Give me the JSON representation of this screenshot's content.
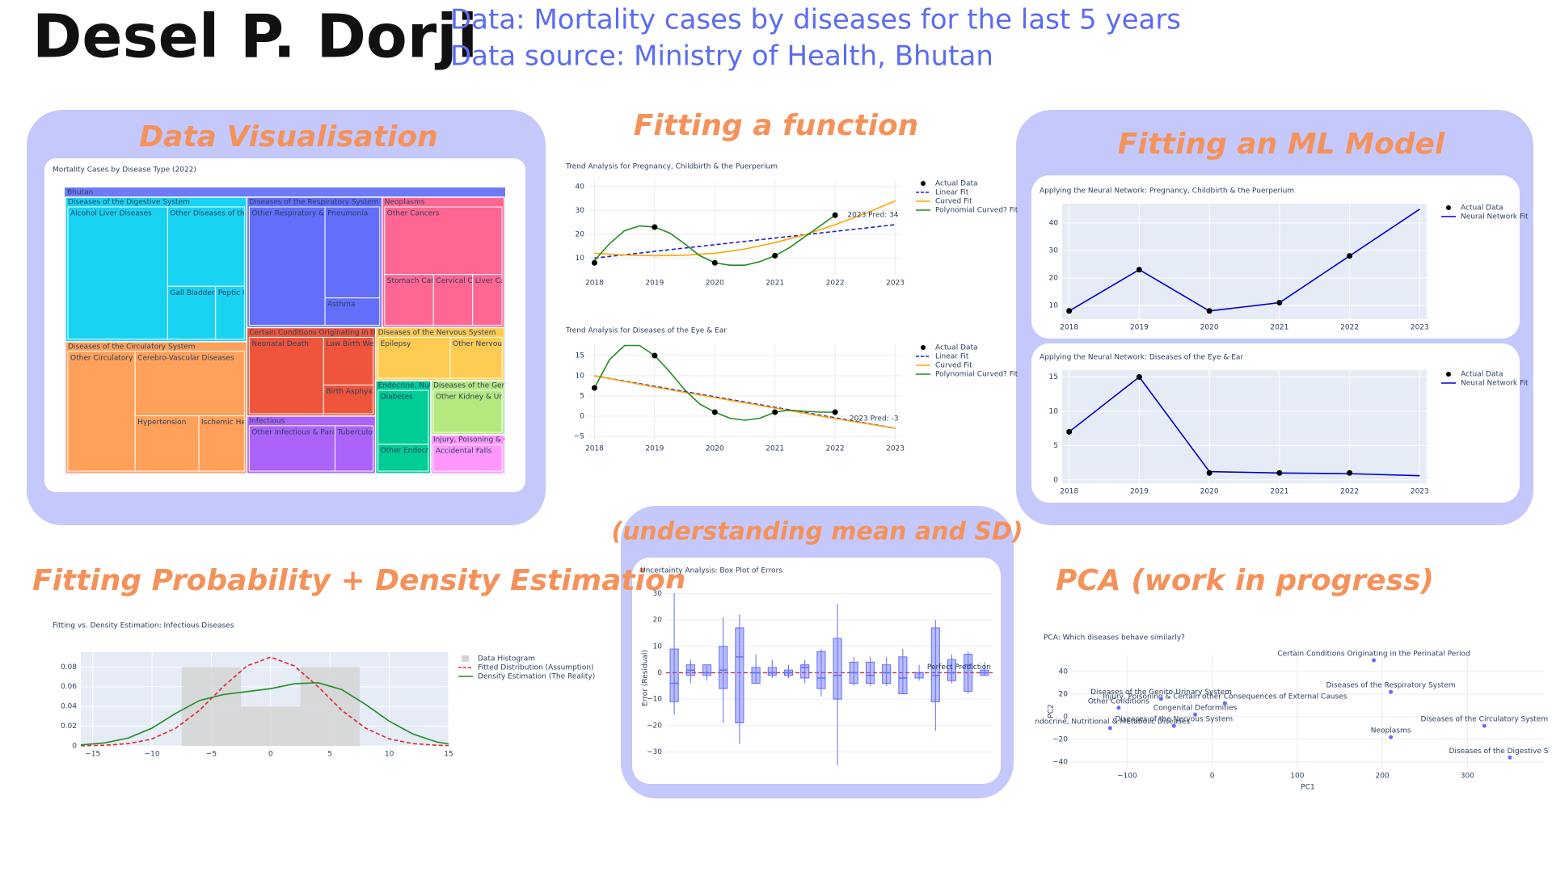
{
  "header": {
    "name": "Desel P. Dorji",
    "lines": [
      "Data: Mortality cases by diseases for the last 5 years",
      "Data source: Ministry of Health, Bhutan"
    ]
  },
  "sections": [
    "Data Visualisation",
    "Fitting a function",
    "Fitting an ML Model",
    "Fitting Probability + Density Estimation",
    "(understanding mean and SD)",
    "PCA (work in progress)"
  ],
  "chart_data": [
    {
      "type": "treemap",
      "title": "Mortality Cases by Disease Type (2022)",
      "root": "Bhutan",
      "groups": [
        {
          "name": "Diseases of the Digestive System",
          "color": "#19d3f3",
          "children": [
            {
              "name": "Alcohol Liver Diseases",
              "value": 130
            },
            {
              "name": "Other Diseases of the Digestive System",
              "value": 60
            },
            {
              "name": "Gall Bladder Diseases",
              "value": 25
            },
            {
              "name": "Peptic Ulcer",
              "value": 15
            }
          ]
        },
        {
          "name": "Diseases of the Circulatory System",
          "color": "#ffa15a",
          "children": [
            {
              "name": "Other Circulatory Diseases",
              "value": 80
            },
            {
              "name": "Cerebro-Vascular Diseases",
              "value": 70
            },
            {
              "name": "Hypertension",
              "value": 35
            },
            {
              "name": "Ischemic Heart Disease",
              "value": 25
            }
          ]
        },
        {
          "name": "Diseases of the Respiratory System",
          "color": "#636efa",
          "children": [
            {
              "name": "Other Respiratory & Nose Diseases",
              "value": 90
            },
            {
              "name": "Pneumonia",
              "value": 50
            },
            {
              "name": "Asthma",
              "value": 15
            }
          ]
        },
        {
          "name": "Neoplasms",
          "color": "#ff6692",
          "children": [
            {
              "name": "Other Cancers",
              "value": 80
            },
            {
              "name": "Stomach Cancer",
              "value": 25
            },
            {
              "name": "Cervical Cancer",
              "value": 20
            },
            {
              "name": "Liver Cancer",
              "value": 15
            }
          ]
        },
        {
          "name": "Certain Conditions Originating in the Perinatal Period",
          "color": "#ef553b",
          "children": [
            {
              "name": "Neonatal Death",
              "value": 60
            },
            {
              "name": "Low Birth Weight",
              "value": 25
            },
            {
              "name": "Birth Asphyxia",
              "value": 15
            }
          ]
        },
        {
          "name": "Infectious",
          "color": "#ab63fa",
          "children": [
            {
              "name": "Other Infectious & Parasitic Diseases",
              "value": 45
            },
            {
              "name": "Tuberculosis",
              "value": 20
            }
          ]
        },
        {
          "name": "Diseases of the Nervous System",
          "color": "#fecb52",
          "children": [
            {
              "name": "Epilepsy",
              "value": 35
            },
            {
              "name": "Other Nervous Diseases",
              "value": 25
            }
          ]
        },
        {
          "name": "Endocrine, Nutritional & Metabolic Diseases",
          "color": "#00cc96",
          "children": [
            {
              "name": "Diabetes",
              "value": 30
            },
            {
              "name": "Other Endocrine Diseases",
              "value": 15
            }
          ]
        },
        {
          "name": "Diseases of the Genito-Urinary System",
          "color": "#b6e880",
          "children": [
            {
              "name": "Other Kidney & Urinary Diseases",
              "value": 35
            }
          ]
        },
        {
          "name": "Injury, Poisoning & Certain other Consequences of External Causes",
          "color": "#ff97ff",
          "children": [
            {
              "name": "Accidental Falls",
              "value": 25
            }
          ]
        }
      ]
    },
    {
      "type": "line",
      "title": "Trend Analysis for Pregnancy, Childbirth & the Puerperium",
      "x": [
        2018,
        2019,
        2020,
        2021,
        2022,
        2023
      ],
      "xlim": [
        2017.9,
        2023.1
      ],
      "xticks": [
        2018,
        2019,
        2020,
        2021,
        2022,
        2023
      ],
      "ylim": [
        3,
        43
      ],
      "yticks": [
        10,
        20,
        30,
        40
      ],
      "grid": true,
      "plot_bg": "#ffffff",
      "legend": true,
      "annotation": "2023 Pred: 34",
      "series": [
        {
          "name": "Actual Data",
          "color": "#000000",
          "mode": "markers",
          "values": [
            8,
            23,
            8,
            11,
            28,
            null
          ]
        },
        {
          "name": "Linear Fit",
          "color": "#1f1fd6",
          "mode": "lines",
          "dash": true,
          "values": [
            10,
            12.8,
            15.6,
            18.4,
            21.2,
            24
          ]
        },
        {
          "name": "Curved Fit",
          "color": "#ffa500",
          "mode": "lines",
          "x": [
            2018,
            2018.5,
            2019,
            2019.5,
            2020,
            2020.5,
            2021,
            2021.5,
            2022,
            2022.5,
            2023
          ],
          "values": [
            12,
            11.3,
            11,
            11.2,
            12,
            13.8,
            16.5,
            19.8,
            24,
            28.7,
            34
          ]
        },
        {
          "name": "Polynomial Curved? Fit",
          "color": "#228b22",
          "mode": "lines",
          "x": [
            2018,
            2018.25,
            2018.5,
            2018.75,
            2019,
            2019.25,
            2019.5,
            2019.75,
            2020,
            2020.25,
            2020.5,
            2020.75,
            2021,
            2021.25,
            2021.5,
            2021.75,
            2022
          ],
          "values": [
            9,
            16,
            21.5,
            23.5,
            23,
            20.5,
            16,
            11,
            8,
            7,
            7,
            8.5,
            11,
            14.5,
            19,
            23.5,
            28
          ]
        }
      ]
    },
    {
      "type": "line",
      "title": "Trend Analysis for Diseases of the Eye & Ear",
      "x": [
        2018,
        2019,
        2020,
        2021,
        2022,
        2023
      ],
      "xlim": [
        2017.9,
        2023.1
      ],
      "xticks": [
        2018,
        2019,
        2020,
        2021,
        2022,
        2023
      ],
      "ylim": [
        -6,
        18
      ],
      "yticks": [
        {
          "value": -5,
          "label": "−5"
        },
        0,
        5,
        10,
        15
      ],
      "grid": true,
      "plot_bg": "#ffffff",
      "legend": true,
      "annotation": "2023 Pred: -3",
      "series": [
        {
          "name": "Actual Data",
          "color": "#000000",
          "mode": "markers",
          "values": [
            7,
            15,
            1,
            1,
            1,
            null
          ]
        },
        {
          "name": "Linear Fit",
          "color": "#1f1fd6",
          "mode": "lines",
          "dash": true,
          "values": [
            10,
            7.4,
            4.8,
            2.2,
            -0.4,
            -3
          ]
        },
        {
          "name": "Curved Fit",
          "color": "#ffa500",
          "mode": "lines",
          "x": [
            2018,
            2018.5,
            2019,
            2019.5,
            2020,
            2020.5,
            2021,
            2021.5,
            2022,
            2022.5,
            2023
          ],
          "values": [
            10,
            8.6,
            7.2,
            5.9,
            4.6,
            3.3,
            2,
            0.7,
            -0.6,
            -1.8,
            -3
          ]
        },
        {
          "name": "Polynomial Curved? Fit",
          "color": "#228b22",
          "mode": "lines",
          "x": [
            2018,
            2018.25,
            2018.5,
            2018.75,
            2019,
            2019.25,
            2019.5,
            2019.75,
            2020,
            2020.25,
            2020.5,
            2020.75,
            2021,
            2021.25,
            2021.5,
            2021.75,
            2022
          ],
          "values": [
            7,
            14,
            17.5,
            17.5,
            15,
            11,
            6.5,
            3,
            1,
            -0.5,
            -1,
            -0.5,
            1,
            1.5,
            1.2,
            1,
            1
          ]
        }
      ]
    },
    {
      "type": "line",
      "title": "Applying the Neural Network: Pregnancy, Childbirth & the Puerperium",
      "x": [
        2018,
        2019,
        2020,
        2021,
        2022,
        2023
      ],
      "xlim": [
        2017.9,
        2023.1
      ],
      "xticks": [
        2018,
        2019,
        2020,
        2021,
        2022,
        2023
      ],
      "ylim": [
        5,
        47
      ],
      "yticks": [
        10,
        20,
        30,
        40
      ],
      "grid": true,
      "plot_bg": "#e5ecf6",
      "legend": true,
      "series": [
        {
          "name": "Actual Data",
          "color": "#000000",
          "mode": "markers",
          "values": [
            8,
            23,
            8,
            11,
            28,
            null
          ]
        },
        {
          "name": "Neural Network Fit",
          "color": "#0000cd",
          "mode": "lines",
          "values": [
            8,
            23,
            8,
            11,
            28,
            45
          ]
        }
      ]
    },
    {
      "type": "line",
      "title": "Applying the Neural Network: Diseases of the Eye & Ear",
      "x": [
        2018,
        2019,
        2020,
        2021,
        2022,
        2023
      ],
      "xlim": [
        2017.9,
        2023.1
      ],
      "xticks": [
        2018,
        2019,
        2020,
        2021,
        2022,
        2023
      ],
      "ylim": [
        -0.5,
        16
      ],
      "yticks": [
        0,
        5,
        10,
        15
      ],
      "grid": true,
      "plot_bg": "#e5ecf6",
      "legend": true,
      "series": [
        {
          "name": "Actual Data",
          "color": "#000000",
          "mode": "markers",
          "values": [
            7,
            15,
            1,
            1,
            1,
            null
          ]
        },
        {
          "name": "Neural Network Fit",
          "color": "#0000cd",
          "mode": "lines",
          "values": [
            7,
            15,
            1.2,
            1,
            0.9,
            0.6
          ]
        }
      ]
    },
    {
      "type": "density",
      "title": "Fitting vs. Density Estimation: Infectious Diseases",
      "xlim": [
        -16,
        15
      ],
      "xticks": [
        {
          "value": -15,
          "label": "−15"
        },
        {
          "value": -10,
          "label": "−10"
        },
        {
          "value": -5,
          "label": "−5"
        },
        0,
        5,
        10,
        15
      ],
      "ylim": [
        0,
        0.095
      ],
      "yticks": [
        0,
        0.02,
        0.04,
        0.06,
        0.08
      ],
      "grid": true,
      "plot_bg": "#e5ecf6",
      "legend": true,
      "histogram": {
        "name": "Data Histogram",
        "color": "#d3d3d3",
        "bins": [
          -7.5,
          -2.5,
          2.5,
          7.5
        ],
        "counts": [
          0.08,
          0.04,
          0.08
        ]
      },
      "x": [
        -16,
        -14,
        -12,
        -10,
        -8,
        -6,
        -4,
        -2,
        0,
        2,
        4,
        6,
        8,
        10,
        12,
        14,
        15
      ],
      "series": [
        {
          "name": "Fitted Distribution (Assumption)",
          "color": "#e8262b",
          "mode": "lines",
          "dash": true,
          "values": [
            0.0002,
            0.0006,
            0.0023,
            0.007,
            0.018,
            0.036,
            0.06,
            0.081,
            0.09,
            0.081,
            0.06,
            0.036,
            0.018,
            0.007,
            0.0023,
            0.0006,
            0.0003
          ]
        },
        {
          "name": "Density Estimation (The Reality)",
          "color": "#228b22",
          "mode": "lines",
          "values": [
            0.001,
            0.003,
            0.008,
            0.018,
            0.033,
            0.046,
            0.052,
            0.055,
            0.058,
            0.063,
            0.064,
            0.057,
            0.042,
            0.025,
            0.012,
            0.004,
            0.002
          ]
        }
      ]
    },
    {
      "type": "box",
      "title": "Uncertainty Analysis: Box Plot of Errors",
      "ylabel": "Error (Residual)",
      "ylim": [
        -36,
        32
      ],
      "yticks": [
        {
          "value": -30,
          "label": "−30"
        },
        {
          "value": -20,
          "label": "−20"
        },
        {
          "value": -10,
          "label": "−10"
        },
        0,
        10,
        20,
        30
      ],
      "grid": true,
      "plot_bg": "#ffffff",
      "color": "#636efa",
      "reference": 0,
      "reference_color": "#e8262b",
      "annotation": "Perfect Prediction",
      "boxes": [
        {
          "min": -16,
          "q1": -11,
          "median": -4,
          "q3": 9,
          "max": 30
        },
        {
          "min": -4,
          "q1": -1,
          "median": 1,
          "q3": 3,
          "max": 5
        },
        {
          "min": -3,
          "q1": -1,
          "median": 0,
          "q3": 3,
          "max": 3
        },
        {
          "min": -19,
          "q1": -6,
          "median": 1,
          "q3": 10,
          "max": 21
        },
        {
          "min": -27,
          "q1": -19,
          "median": 6,
          "q3": 17,
          "max": 22
        },
        {
          "min": -4,
          "q1": -4,
          "median": 0,
          "q3": 2,
          "max": 7
        },
        {
          "min": -2,
          "q1": -1,
          "median": 0,
          "q3": 2,
          "max": 5
        },
        {
          "min": -2,
          "q1": -1,
          "median": 0,
          "q3": 1,
          "max": 3
        },
        {
          "min": -4,
          "q1": -2,
          "median": 2,
          "q3": 3,
          "max": 5
        },
        {
          "min": -9,
          "q1": -6,
          "median": -2,
          "q3": 8,
          "max": 9
        },
        {
          "min": -35,
          "q1": -10,
          "median": -1,
          "q3": 13,
          "max": 26
        },
        {
          "min": -5,
          "q1": -4,
          "median": 0,
          "q3": 4,
          "max": 6
        },
        {
          "min": -5,
          "q1": -4,
          "median": -1,
          "q3": 4,
          "max": 6
        },
        {
          "min": -5,
          "q1": -4,
          "median": 0,
          "q3": 3,
          "max": 6
        },
        {
          "min": -8,
          "q1": -8,
          "median": -2,
          "q3": 6,
          "max": 9
        },
        {
          "min": -3,
          "q1": -2,
          "median": 0,
          "q3": 0,
          "max": 3
        },
        {
          "min": -22,
          "q1": -11,
          "median": -1,
          "q3": 17,
          "max": 20
        },
        {
          "min": -4,
          "q1": -3,
          "median": 0,
          "q3": 5,
          "max": 7
        },
        {
          "min": -8,
          "q1": -7,
          "median": 3,
          "q3": 7,
          "max": 8
        },
        {
          "min": -1,
          "q1": -1,
          "median": 0,
          "q3": 1,
          "max": 4
        }
      ]
    },
    {
      "type": "scatter",
      "title": "PCA: Which diseases behave similarly?",
      "xlabel": "PC1",
      "ylabel": "PC2",
      "xlim": [
        -165,
        390
      ],
      "ylim": [
        -45,
        55
      ],
      "xticks": [
        {
          "value": -100,
          "label": "−100"
        },
        0,
        100,
        200,
        300
      ],
      "yticks": [
        {
          "value": -40,
          "label": "−40"
        },
        {
          "value": -20,
          "label": "−20"
        },
        0,
        20,
        40
      ],
      "grid": true,
      "plot_bg": "#ffffff",
      "color": "#636efa",
      "points": [
        {
          "x": 190,
          "y": 50,
          "label": "Certain Conditions Originating in the Perinatal Period"
        },
        {
          "x": 210,
          "y": 22,
          "label": "Diseases of the Respiratory System"
        },
        {
          "x": 320,
          "y": -8,
          "label": "Diseases of the Circulatory System"
        },
        {
          "x": 210,
          "y": -18,
          "label": "Neoplasms"
        },
        {
          "x": 350,
          "y": -36,
          "label": "Diseases of the Digestive System"
        },
        {
          "x": 15,
          "y": 12,
          "label": "Injury, Poisoning & Certain other Consequences of External Causes"
        },
        {
          "x": -60,
          "y": 16,
          "label": "Diseases of the Genito-Urinary System"
        },
        {
          "x": -110,
          "y": 8,
          "label": "Other Conditions"
        },
        {
          "x": -45,
          "y": -8,
          "label": "Diseases of the Nervous System"
        },
        {
          "x": -20,
          "y": 2,
          "label": "Congenital Deformities"
        },
        {
          "x": -120,
          "y": -10,
          "label": "Endocrine, Nutritional & Metabolic Diseases"
        }
      ]
    }
  ]
}
